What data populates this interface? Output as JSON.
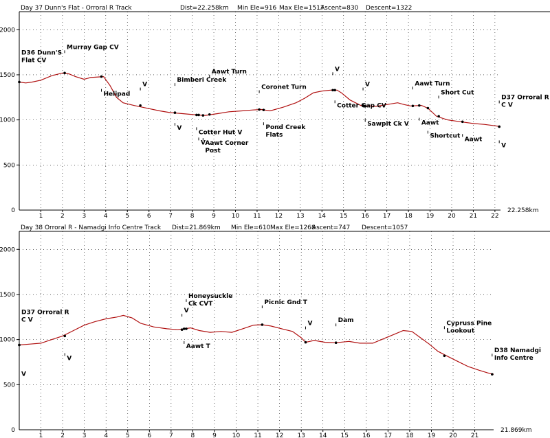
{
  "colors": {
    "profile": "#b01010",
    "axis": "#000000",
    "grid": "#000000"
  },
  "chart_data": [
    {
      "type": "line",
      "title": "Day 37 Dunn's Flat - Orroral R Track",
      "stats": [
        "Dist=22.258km",
        "Min Ele=916",
        "Max Ele=1517",
        "Ascent=830",
        "Descent=1322"
      ],
      "xlabel": "22.258km",
      "xlim": [
        0,
        22.258
      ],
      "ylim": [
        0,
        2200
      ],
      "xticks": [
        1,
        2,
        3,
        4,
        5,
        6,
        7,
        8,
        9,
        10,
        11,
        12,
        13,
        14,
        15,
        16,
        17,
        18,
        19,
        20,
        21,
        22
      ],
      "yticks": [
        500,
        1000,
        1500,
        2000
      ],
      "profile": [
        [
          0,
          1420
        ],
        [
          0.3,
          1410
        ],
        [
          0.6,
          1420
        ],
        [
          1,
          1440
        ],
        [
          1.5,
          1490
        ],
        [
          2,
          1520
        ],
        [
          2.3,
          1510
        ],
        [
          2.6,
          1480
        ],
        [
          3,
          1450
        ],
        [
          3.3,
          1470
        ],
        [
          3.9,
          1480
        ],
        [
          4.2,
          1380
        ],
        [
          4.5,
          1250
        ],
        [
          4.8,
          1190
        ],
        [
          5.3,
          1160
        ],
        [
          5.9,
          1130
        ],
        [
          6.5,
          1100
        ],
        [
          7,
          1080
        ],
        [
          7.5,
          1070
        ],
        [
          8.2,
          1055
        ],
        [
          8.6,
          1050
        ],
        [
          9.2,
          1070
        ],
        [
          9.7,
          1090
        ],
        [
          10.3,
          1100
        ],
        [
          10.8,
          1110
        ],
        [
          11.2,
          1115
        ],
        [
          11.6,
          1100
        ],
        [
          12.2,
          1140
        ],
        [
          12.8,
          1190
        ],
        [
          13.2,
          1240
        ],
        [
          13.6,
          1300
        ],
        [
          14,
          1320
        ],
        [
          14.4,
          1330
        ],
        [
          14.7,
          1330
        ],
        [
          14.9,
          1300
        ],
        [
          15.3,
          1220
        ],
        [
          15.8,
          1160
        ],
        [
          16.5,
          1150
        ],
        [
          17,
          1170
        ],
        [
          17.5,
          1190
        ],
        [
          17.8,
          1170
        ],
        [
          18.1,
          1155
        ],
        [
          18.6,
          1160
        ],
        [
          18.9,
          1130
        ],
        [
          19.3,
          1040
        ],
        [
          19.8,
          1000
        ],
        [
          20.4,
          980
        ],
        [
          21,
          960
        ],
        [
          21.5,
          950
        ],
        [
          22,
          935
        ],
        [
          22.258,
          925
        ]
      ],
      "waypoints": [
        {
          "x": 2.1,
          "y": 1520,
          "label": "Murray Gap CV",
          "lines": [
            "Murray Gap CV"
          ],
          "dy": -35,
          "anchor": "start"
        },
        {
          "x": 0.0,
          "y": 1420,
          "label": "D36 Dunn'S Flat CV",
          "lines": [
            "D36 Dunn'S",
            "Flat CV"
          ],
          "dy": -40,
          "anchor": "start"
        },
        {
          "x": 3.8,
          "y": 1480,
          "label": "Helipad",
          "lines": [
            "Helipad"
          ],
          "dy": 28,
          "anchor": "start"
        },
        {
          "x": 5.6,
          "y": 1160,
          "label": "V",
          "lines": [
            "V"
          ],
          "dy": -28,
          "anchor": "start"
        },
        {
          "x": 7.2,
          "y": 1080,
          "label": "Bimberi Creek",
          "lines": [
            "Bimberi Creek"
          ],
          "dy": -45,
          "anchor": "start"
        },
        {
          "x": 7.2,
          "y": 1080,
          "label": "V",
          "lines": [
            "V"
          ],
          "dy": 25,
          "anchor": "start"
        },
        {
          "x": 8.8,
          "y": 1060,
          "label": "Aawt Turn",
          "lines": [
            "Aawt Turn"
          ],
          "dy": -60,
          "anchor": "start"
        },
        {
          "x": 8.2,
          "y": 1055,
          "label": "Cotter Hut V",
          "lines": [
            "Cotter Hut V"
          ],
          "dy": 28,
          "anchor": "start"
        },
        {
          "x": 8.3,
          "y": 1055,
          "label": "V",
          "lines": [
            "V"
          ],
          "dy": 43,
          "anchor": "start"
        },
        {
          "x": 8.5,
          "y": 1050,
          "label": "Aawt Corner Post",
          "lines": [
            "Aawt Corner",
            "Post"
          ],
          "dy": 43,
          "anchor": "start"
        },
        {
          "x": 11.1,
          "y": 1115,
          "label": "Coronet Turn",
          "lines": [
            "Coronet Turn"
          ],
          "dy": -30,
          "anchor": "start"
        },
        {
          "x": 11.3,
          "y": 1110,
          "label": "Pond Creek Flats",
          "lines": [
            "Pond Creek",
            "Flats"
          ],
          "dy": 28,
          "anchor": "start"
        },
        {
          "x": 14.5,
          "y": 1330,
          "label": "V",
          "lines": [
            "V"
          ],
          "dy": -28,
          "anchor": "start"
        },
        {
          "x": 14.6,
          "y": 1330,
          "label": "Cotter Gap CV",
          "lines": [
            "Cotter Gap CV"
          ],
          "dy": 25,
          "anchor": "start"
        },
        {
          "x": 15.9,
          "y": 1160,
          "label": "V",
          "lines": [
            "V"
          ],
          "dy": -28,
          "anchor": "start"
        },
        {
          "x": 16,
          "y": 1150,
          "label": "Sawpit Ck V",
          "lines": [
            "Sawpit Ck V"
          ],
          "dy": 28,
          "anchor": "start"
        },
        {
          "x": 18.2,
          "y": 1155,
          "label": "Aawt Turn",
          "lines": [
            "Aawt Turn"
          ],
          "dy": -30,
          "anchor": "start"
        },
        {
          "x": 18.5,
          "y": 1160,
          "label": "Aawt",
          "lines": [
            "Aawt"
          ],
          "dy": 28,
          "anchor": "start"
        },
        {
          "x": 18.9,
          "y": 1130,
          "label": "Shortcut",
          "lines": [
            "Shortcut"
          ],
          "dy": 43,
          "anchor": "start"
        },
        {
          "x": 19.4,
          "y": 1040,
          "label": "Short Cut",
          "lines": [
            "Short Cut"
          ],
          "dy": -32,
          "anchor": "start"
        },
        {
          "x": 20.5,
          "y": 980,
          "label": "Aawt",
          "lines": [
            "Aawt"
          ],
          "dy": 28,
          "anchor": "start"
        },
        {
          "x": 22.2,
          "y": 925,
          "label": "D37 Orroral R C V",
          "lines": [
            "D37 Orroral R",
            "C V"
          ],
          "dy": -40,
          "anchor": "start"
        },
        {
          "x": 22.2,
          "y": 925,
          "label": "V",
          "lines": [
            "V"
          ],
          "dy": 30,
          "anchor": "start"
        }
      ]
    },
    {
      "type": "line",
      "title": "Day 38 Orroral R - Namadgi Info Centre Track",
      "stats": [
        "Dist=21.869km",
        "Min Ele=610",
        "Max Ele=1268",
        "Ascent=747",
        "Descent=1057"
      ],
      "xlabel": "21.869km",
      "xlim": [
        0,
        21.869
      ],
      "ylim": [
        0,
        2200
      ],
      "xticks": [
        1,
        2,
        3,
        4,
        5,
        6,
        7,
        8,
        9,
        10,
        11,
        12,
        13,
        14,
        15,
        16,
        17,
        18,
        19,
        20,
        21
      ],
      "yticks": [
        500,
        1000,
        1500,
        2000
      ],
      "profile": [
        [
          0,
          940
        ],
        [
          0.5,
          950
        ],
        [
          1,
          960
        ],
        [
          1.5,
          1000
        ],
        [
          2,
          1040
        ],
        [
          2.5,
          1100
        ],
        [
          3,
          1160
        ],
        [
          3.5,
          1200
        ],
        [
          4,
          1230
        ],
        [
          4.5,
          1250
        ],
        [
          4.8,
          1268
        ],
        [
          5.2,
          1240
        ],
        [
          5.6,
          1180
        ],
        [
          6.2,
          1140
        ],
        [
          6.8,
          1120
        ],
        [
          7.3,
          1110
        ],
        [
          7.6,
          1120
        ],
        [
          7.9,
          1130
        ],
        [
          8.3,
          1100
        ],
        [
          8.8,
          1080
        ],
        [
          9.3,
          1090
        ],
        [
          9.8,
          1080
        ],
        [
          10.3,
          1120
        ],
        [
          10.8,
          1160
        ],
        [
          11.2,
          1165
        ],
        [
          11.6,
          1150
        ],
        [
          12.1,
          1120
        ],
        [
          12.6,
          1090
        ],
        [
          13,
          1020
        ],
        [
          13.2,
          970
        ],
        [
          13.6,
          990
        ],
        [
          14.1,
          970
        ],
        [
          14.6,
          965
        ],
        [
          15.2,
          980
        ],
        [
          15.7,
          960
        ],
        [
          16.3,
          960
        ],
        [
          16.8,
          1010
        ],
        [
          17.3,
          1060
        ],
        [
          17.7,
          1100
        ],
        [
          18.1,
          1090
        ],
        [
          18.5,
          1020
        ],
        [
          18.9,
          950
        ],
        [
          19.3,
          870
        ],
        [
          19.7,
          820
        ],
        [
          20.2,
          760
        ],
        [
          20.7,
          700
        ],
        [
          21.2,
          660
        ],
        [
          21.6,
          630
        ],
        [
          21.869,
          615
        ]
      ],
      "waypoints": [
        {
          "x": 0,
          "y": 940,
          "label": "D37 Orroral R C V",
          "lines": [
            "D37 Orroral R",
            "C V"
          ],
          "dy": -45,
          "anchor": "start"
        },
        {
          "x": 0,
          "y": 940,
          "label": "V",
          "lines": [
            "V"
          ],
          "dy": 45,
          "anchor": "start"
        },
        {
          "x": 2.1,
          "y": 1040,
          "label": "V",
          "lines": [
            "V"
          ],
          "dy": 35,
          "anchor": "start"
        },
        {
          "x": 7.5,
          "y": 1110,
          "label": "V",
          "lines": [
            "V"
          ],
          "dy": -25,
          "anchor": "start"
        },
        {
          "x": 7.7,
          "y": 1120,
          "label": "Honeysuckle Ck CVT",
          "lines": [
            "Honeysuckle",
            "Ck CVT"
          ],
          "dy": -45,
          "anchor": "start"
        },
        {
          "x": 7.6,
          "y": 1120,
          "label": "Aawt T",
          "lines": [
            "Aawt T"
          ],
          "dy": 28,
          "anchor": "start"
        },
        {
          "x": 11.2,
          "y": 1165,
          "label": "Picnic Gnd T",
          "lines": [
            "Picnic Gnd T"
          ],
          "dy": -30,
          "anchor": "start"
        },
        {
          "x": 13.2,
          "y": 970,
          "label": "V",
          "lines": [
            "V"
          ],
          "dy": -25,
          "anchor": "start"
        },
        {
          "x": 14.6,
          "y": 965,
          "label": "Dam",
          "lines": [
            "Dam"
          ],
          "dy": -30,
          "anchor": "start"
        },
        {
          "x": 19.6,
          "y": 820,
          "label": "Cypruss Pine Lookout",
          "lines": [
            "Cypruss Pine",
            "Lookout"
          ],
          "dy": -45,
          "anchor": "start"
        },
        {
          "x": 21.8,
          "y": 615,
          "label": "D38 Namadgi Info Centre",
          "lines": [
            "D38 Namadgi",
            "Info Centre"
          ],
          "dy": -32,
          "anchor": "start"
        }
      ]
    }
  ]
}
